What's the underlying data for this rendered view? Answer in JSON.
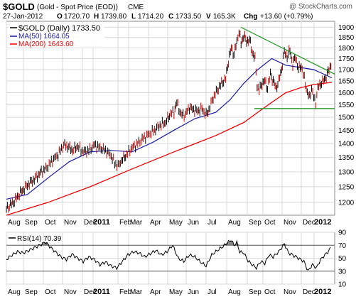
{
  "header": {
    "symbol": "$GOLD",
    "description": "(Gold - Spot Price (EOD))",
    "exchange": "CME",
    "watermark": "@ StockCharts.com",
    "date": "27-Jan-2012",
    "open_label": "O",
    "open": "1720.70",
    "high_label": "H",
    "high": "1739.80",
    "low_label": "L",
    "low": "1714.20",
    "close_label": "C",
    "close": "1733.50",
    "volume_label": "V",
    "volume": "165.3K",
    "chg_label": "Chg",
    "chg": "+13.60 (+0.79%)"
  },
  "legend": {
    "price": "$GOLD (Daily) 1733.50",
    "ma50": "MA(50) 1664.05",
    "ma200": "MA(200) 1643.60",
    "rsi": "RSI(14) 70.39"
  },
  "colors": {
    "price": "#000000",
    "price_down": "#cc0000",
    "ma50": "#1a1aa0",
    "ma200": "#ee0000",
    "trendline": "#2a9a2a",
    "rsi": "#000000",
    "rsi_band_fill": "#666666",
    "grid": "#d9d9d9"
  },
  "chart_data": [
    {
      "type": "line",
      "y_scale": "log",
      "ylim": [
        1160,
        1930
      ],
      "y_ticks": [
        1200,
        1250,
        1300,
        1350,
        1400,
        1450,
        1500,
        1550,
        1600,
        1650,
        1700,
        1750,
        1800,
        1850,
        1900
      ],
      "x_ticks": [
        "Aug",
        "Sep",
        "Oct",
        "Nov",
        "Dec",
        "2011",
        "Feb",
        "Mar",
        "Apr",
        "May",
        "Jun",
        "Jul",
        "Aug",
        "Sep",
        "Oct",
        "Nov",
        "Dec",
        "2012"
      ],
      "grid": true,
      "series": [
        {
          "name": "$GOLD (Daily)",
          "values": [
            [
              0,
              1180
            ],
            [
              10,
              1200
            ],
            [
              20,
              1230
            ],
            [
              30,
              1255
            ],
            [
              40,
              1275
            ],
            [
              50,
              1300
            ],
            [
              58,
              1315
            ],
            [
              66,
              1340
            ],
            [
              74,
              1360
            ],
            [
              82,
              1395
            ],
            [
              88,
              1390
            ],
            [
              95,
              1375
            ],
            [
              102,
              1390
            ],
            [
              110,
              1370
            ],
            [
              118,
              1375
            ],
            [
              126,
              1395
            ],
            [
              134,
              1385
            ],
            [
              142,
              1375
            ],
            [
              150,
              1355
            ],
            [
              155,
              1330
            ],
            [
              160,
              1320
            ],
            [
              165,
              1340
            ],
            [
              172,
              1360
            ],
            [
              180,
              1385
            ],
            [
              188,
              1400
            ],
            [
              196,
              1420
            ],
            [
              204,
              1435
            ],
            [
              212,
              1450
            ],
            [
              220,
              1470
            ],
            [
              228,
              1480
            ],
            [
              235,
              1515
            ],
            [
              240,
              1520
            ],
            [
              244,
              1560
            ],
            [
              250,
              1510
            ],
            [
              256,
              1510
            ],
            [
              262,
              1540
            ],
            [
              268,
              1530
            ],
            [
              274,
              1525
            ],
            [
              280,
              1535
            ],
            [
              286,
              1510
            ],
            [
              290,
              1530
            ],
            [
              296,
              1580
            ],
            [
              302,
              1610
            ],
            [
              308,
              1640
            ],
            [
              314,
              1660
            ],
            [
              318,
              1740
            ],
            [
              322,
              1800
            ],
            [
              326,
              1770
            ],
            [
              330,
              1830
            ],
            [
              333,
              1880
            ],
            [
              336,
              1820
            ],
            [
              340,
              1860
            ],
            [
              344,
              1830
            ],
            [
              348,
              1840
            ],
            [
              352,
              1780
            ],
            [
              356,
              1750
            ],
            [
              359,
              1630
            ],
            [
              362,
              1610
            ],
            [
              366,
              1640
            ],
            [
              370,
              1650
            ],
            [
              374,
              1620
            ],
            [
              378,
              1680
            ],
            [
              382,
              1650
            ],
            [
              386,
              1620
            ],
            [
              390,
              1650
            ],
            [
              394,
              1700
            ],
            [
              398,
              1780
            ],
            [
              402,
              1760
            ],
            [
              406,
              1790
            ],
            [
              410,
              1720
            ],
            [
              414,
              1760
            ],
            [
              418,
              1700
            ],
            [
              422,
              1720
            ],
            [
              425,
              1680
            ],
            [
              428,
              1640
            ],
            [
              431,
              1600
            ],
            [
              434,
              1580
            ],
            [
              437,
              1620
            ],
            [
              440,
              1580
            ],
            [
              443,
              1560
            ],
            [
              446,
              1620
            ],
            [
              450,
              1640
            ],
            [
              454,
              1650
            ],
            [
              458,
              1670
            ],
            [
              462,
              1700
            ],
            [
              466,
              1735
            ]
          ]
        },
        {
          "name": "MA(50)",
          "values": [
            [
              0,
              1210
            ],
            [
              30,
              1225
            ],
            [
              60,
              1280
            ],
            [
              90,
              1335
            ],
            [
              120,
              1370
            ],
            [
              150,
              1375
            ],
            [
              180,
              1370
            ],
            [
              210,
              1405
            ],
            [
              240,
              1450
            ],
            [
              270,
              1495
            ],
            [
              300,
              1520
            ],
            [
              320,
              1570
            ],
            [
              340,
              1640
            ],
            [
              360,
              1700
            ],
            [
              380,
              1750
            ],
            [
              400,
              1720
            ],
            [
              420,
              1710
            ],
            [
              440,
              1700
            ],
            [
              466,
              1664
            ]
          ]
        },
        {
          "name": "MA(200)",
          "values": [
            [
              0,
              1160
            ],
            [
              60,
              1200
            ],
            [
              120,
              1250
            ],
            [
              180,
              1310
            ],
            [
              240,
              1370
            ],
            [
              300,
              1430
            ],
            [
              340,
              1480
            ],
            [
              360,
              1520
            ],
            [
              380,
              1560
            ],
            [
              400,
              1600
            ],
            [
              420,
              1620
            ],
            [
              440,
              1635
            ],
            [
              466,
              1644
            ]
          ]
        }
      ],
      "annotations": [
        {
          "type": "trendline",
          "from": [
            336,
            1900
          ],
          "to": [
            466,
            1680
          ]
        },
        {
          "type": "support",
          "from": [
            355,
            1535
          ],
          "to": [
            466,
            1535
          ]
        }
      ]
    },
    {
      "type": "line",
      "ylim": [
        10,
        90
      ],
      "y_ticks": [
        10,
        30,
        50,
        70,
        90
      ],
      "bands": [
        30,
        70
      ],
      "x_ticks": [
        "Aug",
        "Sep",
        "Oct",
        "Nov",
        "Dec",
        "2011",
        "Feb",
        "Mar",
        "Apr",
        "May",
        "Jun",
        "Jul",
        "Aug",
        "Sep",
        "Oct",
        "Nov",
        "Dec",
        "2012"
      ],
      "series": [
        {
          "name": "RSI(14)",
          "values": [
            [
              0,
              48
            ],
            [
              8,
              55
            ],
            [
              16,
              60
            ],
            [
              24,
              58
            ],
            [
              32,
              62
            ],
            [
              40,
              66
            ],
            [
              48,
              70
            ],
            [
              56,
              75
            ],
            [
              62,
              68
            ],
            [
              70,
              60
            ],
            [
              78,
              52
            ],
            [
              86,
              48
            ],
            [
              94,
              56
            ],
            [
              102,
              50
            ],
            [
              110,
              45
            ],
            [
              118,
              52
            ],
            [
              126,
              48
            ],
            [
              134,
              40
            ],
            [
              142,
              44
            ],
            [
              150,
              38
            ],
            [
              158,
              35
            ],
            [
              166,
              45
            ],
            [
              174,
              55
            ],
            [
              182,
              60
            ],
            [
              190,
              58
            ],
            [
              198,
              52
            ],
            [
              206,
              57
            ],
            [
              214,
              62
            ],
            [
              222,
              55
            ],
            [
              230,
              60
            ],
            [
              238,
              70
            ],
            [
              246,
              50
            ],
            [
              254,
              45
            ],
            [
              262,
              55
            ],
            [
              270,
              52
            ],
            [
              278,
              44
            ],
            [
              286,
              38
            ],
            [
              294,
              55
            ],
            [
              302,
              62
            ],
            [
              310,
              68
            ],
            [
              318,
              75
            ],
            [
              322,
              78
            ],
            [
              326,
              70
            ],
            [
              330,
              74
            ],
            [
              334,
              60
            ],
            [
              340,
              58
            ],
            [
              346,
              46
            ],
            [
              352,
              40
            ],
            [
              358,
              35
            ],
            [
              364,
              45
            ],
            [
              370,
              42
            ],
            [
              376,
              55
            ],
            [
              382,
              52
            ],
            [
              390,
              60
            ],
            [
              398,
              72
            ],
            [
              404,
              58
            ],
            [
              410,
              55
            ],
            [
              418,
              50
            ],
            [
              426,
              45
            ],
            [
              432,
              30
            ],
            [
              438,
              40
            ],
            [
              444,
              35
            ],
            [
              450,
              48
            ],
            [
              456,
              55
            ],
            [
              462,
              62
            ],
            [
              466,
              70
            ]
          ]
        }
      ]
    }
  ]
}
